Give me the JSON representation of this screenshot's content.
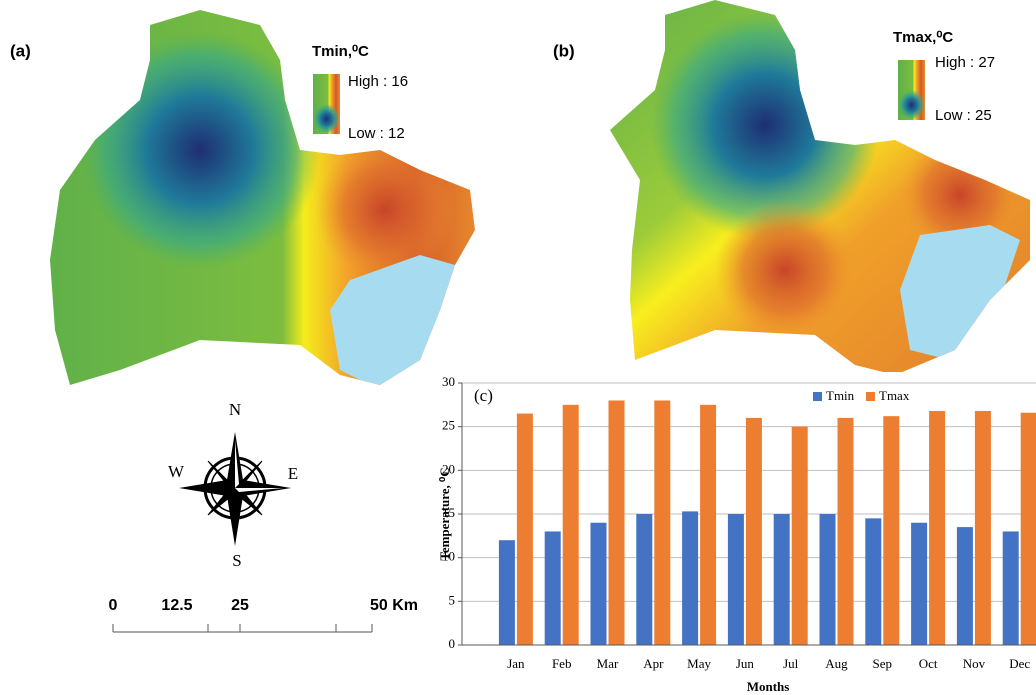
{
  "map_a": {
    "label": "(a)",
    "legend_title": "Tmin,⁰C",
    "high": "High : 16",
    "low": "Low : 12"
  },
  "map_b": {
    "label": "(b)",
    "legend_title": "Tmax,⁰C",
    "high": "High : 27",
    "low": "Low : 25"
  },
  "compass": {
    "north": "N",
    "south": "S",
    "west": "W",
    "east": "E"
  },
  "scale_bar": {
    "labels": [
      "0",
      "12.5",
      "25",
      "50 Km"
    ]
  },
  "chart_data": {
    "type": "bar",
    "label": "(c)",
    "x_label": "Months",
    "y_label": "Temperature, ⁰C",
    "categories": [
      "Jan",
      "Feb",
      "Mar",
      "Apr",
      "May",
      "Jun",
      "Jul",
      "Aug",
      "Sep",
      "Oct",
      "Nov",
      "Dec"
    ],
    "series": [
      {
        "name": "Tmin",
        "color": "#4472c4",
        "values": [
          12,
          13,
          14,
          15,
          15.3,
          15,
          15,
          15,
          14.5,
          14,
          13.5,
          13
        ]
      },
      {
        "name": "Tmax",
        "color": "#ed7d31",
        "values": [
          26.5,
          27.5,
          28,
          28,
          27.5,
          26,
          25,
          26,
          26.2,
          26.8,
          26.8,
          26.6
        ]
      }
    ],
    "ylim": [
      0,
      30
    ],
    "yticks": [
      0,
      5,
      10,
      15,
      20,
      25,
      30
    ],
    "grid": true,
    "legend": "top-right"
  }
}
